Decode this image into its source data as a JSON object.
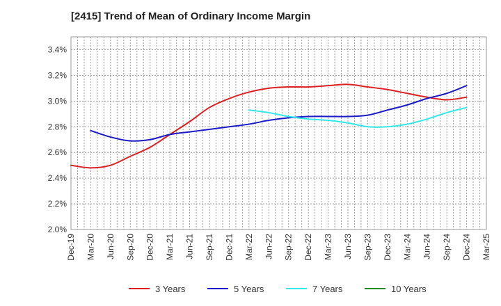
{
  "chart_data": {
    "type": "line",
    "title": "[2415]  Trend of Mean of Ordinary Income Margin",
    "xlabel": "",
    "ylabel": "",
    "x_ticks": [
      "Dec-19",
      "Mar-20",
      "Jun-20",
      "Sep-20",
      "Dec-20",
      "Mar-21",
      "Jun-21",
      "Sep-21",
      "Dec-21",
      "Mar-22",
      "Jun-22",
      "Sep-22",
      "Dec-22",
      "Mar-23",
      "Jun-23",
      "Sep-23",
      "Dec-23",
      "Mar-24",
      "Jun-24",
      "Sep-24",
      "Dec-24",
      "Mar-25"
    ],
    "y_ticks": [
      "2.0%",
      "2.2%",
      "2.4%",
      "2.6%",
      "2.8%",
      "3.0%",
      "3.2%",
      "3.4%"
    ],
    "ylim": [
      2.0,
      3.5
    ],
    "y_unit": "%",
    "grid": true,
    "legend_position": "bottom",
    "series": [
      {
        "name": "3 Years",
        "color": "#dd1f1f",
        "points": [
          [
            "Dec-19",
            2.5
          ],
          [
            "Mar-20",
            2.48
          ],
          [
            "Jun-20",
            2.5
          ],
          [
            "Sep-20",
            2.57
          ],
          [
            "Dec-20",
            2.64
          ],
          [
            "Mar-21",
            2.74
          ],
          [
            "Jun-21",
            2.84
          ],
          [
            "Sep-21",
            2.95
          ],
          [
            "Dec-21",
            3.02
          ],
          [
            "Mar-22",
            3.07
          ],
          [
            "Jun-22",
            3.1
          ],
          [
            "Sep-22",
            3.11
          ],
          [
            "Dec-22",
            3.11
          ],
          [
            "Mar-23",
            3.12
          ],
          [
            "Jun-23",
            3.13
          ],
          [
            "Sep-23",
            3.11
          ],
          [
            "Dec-23",
            3.09
          ],
          [
            "Mar-24",
            3.06
          ],
          [
            "Jun-24",
            3.03
          ],
          [
            "Sep-24",
            3.01
          ],
          [
            "Dec-24",
            3.03
          ]
        ]
      },
      {
        "name": "5 Years",
        "color": "#1a1ac8",
        "points": [
          [
            "Mar-20",
            2.77
          ],
          [
            "Jun-20",
            2.72
          ],
          [
            "Sep-20",
            2.69
          ],
          [
            "Dec-20",
            2.7
          ],
          [
            "Mar-21",
            2.74
          ],
          [
            "Jun-21",
            2.76
          ],
          [
            "Sep-21",
            2.78
          ],
          [
            "Dec-21",
            2.8
          ],
          [
            "Mar-22",
            2.82
          ],
          [
            "Jun-22",
            2.85
          ],
          [
            "Sep-22",
            2.87
          ],
          [
            "Dec-22",
            2.88
          ],
          [
            "Mar-23",
            2.88
          ],
          [
            "Jun-23",
            2.88
          ],
          [
            "Sep-23",
            2.89
          ],
          [
            "Dec-23",
            2.93
          ],
          [
            "Mar-24",
            2.97
          ],
          [
            "Jun-24",
            3.02
          ],
          [
            "Sep-24",
            3.06
          ],
          [
            "Dec-24",
            3.12
          ]
        ]
      },
      {
        "name": "7 Years",
        "color": "#33e8e8",
        "points": [
          [
            "Mar-22",
            2.93
          ],
          [
            "Jun-22",
            2.91
          ],
          [
            "Sep-22",
            2.88
          ],
          [
            "Dec-22",
            2.86
          ],
          [
            "Mar-23",
            2.85
          ],
          [
            "Jun-23",
            2.83
          ],
          [
            "Sep-23",
            2.8
          ],
          [
            "Dec-23",
            2.8
          ],
          [
            "Mar-24",
            2.82
          ],
          [
            "Jun-24",
            2.86
          ],
          [
            "Sep-24",
            2.91
          ],
          [
            "Dec-24",
            2.95
          ]
        ]
      },
      {
        "name": "10 Years",
        "color": "#228b22",
        "points": []
      }
    ]
  }
}
